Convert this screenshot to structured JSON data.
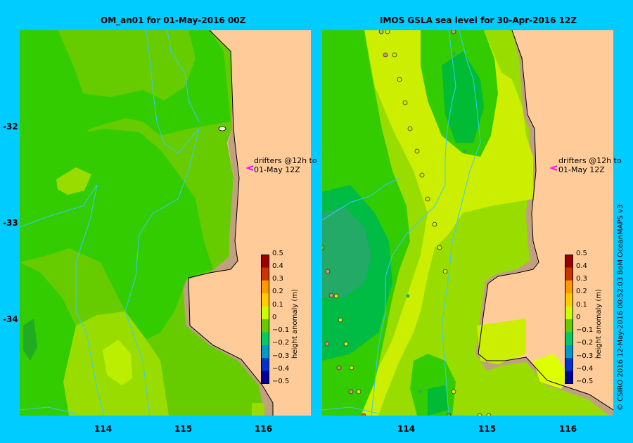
{
  "left_panel": {
    "title": "OM_an01  for 01-May-2016 00Z",
    "drifter_note_line1": "drifters @12h to",
    "drifter_note_line2": "01-May 12Z"
  },
  "right_panel": {
    "title": "IMOS  GSLA sea level   for 30-Apr-2016 12Z",
    "drifter_note_line1": "drifters @12h to",
    "drifter_note_line2": "01-May 12Z"
  },
  "axes": {
    "lat_ticks": [
      "-32",
      "-33",
      "-34"
    ],
    "lon_ticks": [
      "114",
      "115",
      "116"
    ]
  },
  "colorbar": {
    "title": "height anomaly  (m)",
    "labels": [
      "0.5",
      "0.4",
      "0.3",
      "0.2",
      "0.1",
      "0",
      "−0.1",
      "−0.2",
      "−0.3",
      "−0.4",
      "−0.5"
    ],
    "colors": [
      "#990000",
      "#cc3300",
      "#ff9900",
      "#ffcc00",
      "#ccff00",
      "#66cc00",
      "#00cc66",
      "#0099cc",
      "#0033cc",
      "#000099"
    ]
  },
  "credit": "© CSIRO 2016   12-May-2016 00:52:03 BoM OceanMAPS v3",
  "colors": {
    "background": "#00ccff",
    "land": "#ffcc99",
    "shelf": "#c0a080",
    "drifter": "#ff00ff"
  }
}
